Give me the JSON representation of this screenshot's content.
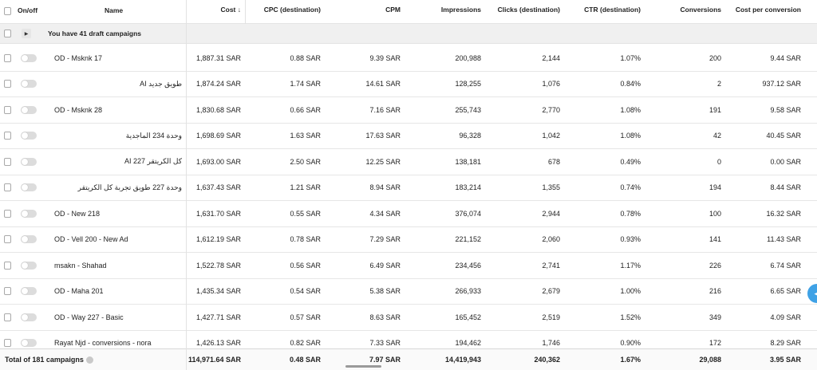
{
  "columns": {
    "onoff": "On/off",
    "name": "Name",
    "cost": "Cost ↓",
    "cpc": "CPC (destination)",
    "cpm": "CPM",
    "impressions": "Impressions",
    "clicks": "Clicks (destination)",
    "ctr": "CTR (destination)",
    "conversions": "Conversions",
    "cost_per_conversion": "Cost per conversion"
  },
  "draft": {
    "label": "You have 41 draft campaigns"
  },
  "rows": [
    {
      "name": "OD - Msknk 17",
      "cost": "1,887.31 SAR",
      "cpc": "0.88 SAR",
      "cpm": "9.39 SAR",
      "impressions": "200,988",
      "clicks": "2,144",
      "ctr": "1.07%",
      "conversions": "200",
      "cpco": "9.44 SAR"
    },
    {
      "name": "طويق جديد AI",
      "cost": "1,874.24 SAR",
      "cpc": "1.74 SAR",
      "cpm": "14.61 SAR",
      "impressions": "128,255",
      "clicks": "1,076",
      "ctr": "0.84%",
      "conversions": "2",
      "cpco": "937.12 SAR"
    },
    {
      "name": "OD - Msknk 28",
      "cost": "1,830.68 SAR",
      "cpc": "0.66 SAR",
      "cpm": "7.16 SAR",
      "impressions": "255,743",
      "clicks": "2,770",
      "ctr": "1.08%",
      "conversions": "191",
      "cpco": "9.58 SAR"
    },
    {
      "name": "وحدة 234 الماجدية",
      "cost": "1,698.69 SAR",
      "cpc": "1.63 SAR",
      "cpm": "17.63 SAR",
      "impressions": "96,328",
      "clicks": "1,042",
      "ctr": "1.08%",
      "conversions": "42",
      "cpco": "40.45 SAR"
    },
    {
      "name": "كل الكريتقر AI 227",
      "cost": "1,693.00 SAR",
      "cpc": "2.50 SAR",
      "cpm": "12.25 SAR",
      "impressions": "138,181",
      "clicks": "678",
      "ctr": "0.49%",
      "conversions": "0",
      "cpco": "0.00 SAR"
    },
    {
      "name": "وحدة 227 طويق تجربة كل الكريتقر",
      "cost": "1,637.43 SAR",
      "cpc": "1.21 SAR",
      "cpm": "8.94 SAR",
      "impressions": "183,214",
      "clicks": "1,355",
      "ctr": "0.74%",
      "conversions": "194",
      "cpco": "8.44 SAR"
    },
    {
      "name": "OD - New 218",
      "cost": "1,631.70 SAR",
      "cpc": "0.55 SAR",
      "cpm": "4.34 SAR",
      "impressions": "376,074",
      "clicks": "2,944",
      "ctr": "0.78%",
      "conversions": "100",
      "cpco": "16.32 SAR"
    },
    {
      "name": "OD - Vell 200 - New Ad",
      "cost": "1,612.19 SAR",
      "cpc": "0.78 SAR",
      "cpm": "7.29 SAR",
      "impressions": "221,152",
      "clicks": "2,060",
      "ctr": "0.93%",
      "conversions": "141",
      "cpco": "11.43 SAR"
    },
    {
      "name": "msakn - Shahad",
      "cost": "1,522.78 SAR",
      "cpc": "0.56 SAR",
      "cpm": "6.49 SAR",
      "impressions": "234,456",
      "clicks": "2,741",
      "ctr": "1.17%",
      "conversions": "226",
      "cpco": "6.74 SAR"
    },
    {
      "name": "OD - Maha 201",
      "cost": "1,435.34 SAR",
      "cpc": "0.54 SAR",
      "cpm": "5.38 SAR",
      "impressions": "266,933",
      "clicks": "2,679",
      "ctr": "1.00%",
      "conversions": "216",
      "cpco": "6.65 SAR"
    },
    {
      "name": "OD - Way 227 - Basic",
      "cost": "1,427.71 SAR",
      "cpc": "0.57 SAR",
      "cpm": "8.63 SAR",
      "impressions": "165,452",
      "clicks": "2,519",
      "ctr": "1.52%",
      "conversions": "349",
      "cpco": "4.09 SAR"
    },
    {
      "name": "Rayat Njd - conversions - nora",
      "cost": "1,426.13 SAR",
      "cpc": "0.82 SAR",
      "cpm": "7.33 SAR",
      "impressions": "194,462",
      "clicks": "1,746",
      "ctr": "0.90%",
      "conversions": "172",
      "cpco": "8.29 SAR"
    }
  ],
  "totals": {
    "label": "Total of 181 campaigns",
    "cost": "114,971.64 SAR",
    "cpc": "0.48 SAR",
    "cpm": "7.97 SAR",
    "impressions": "14,419,943",
    "clicks": "240,362",
    "ctr": "1.67%",
    "conversions": "29,088",
    "cpco": "3.95 SAR"
  },
  "icons": {
    "expand": "caret-right-icon",
    "info": "info-icon",
    "side_button": "arrow-left-icon"
  }
}
